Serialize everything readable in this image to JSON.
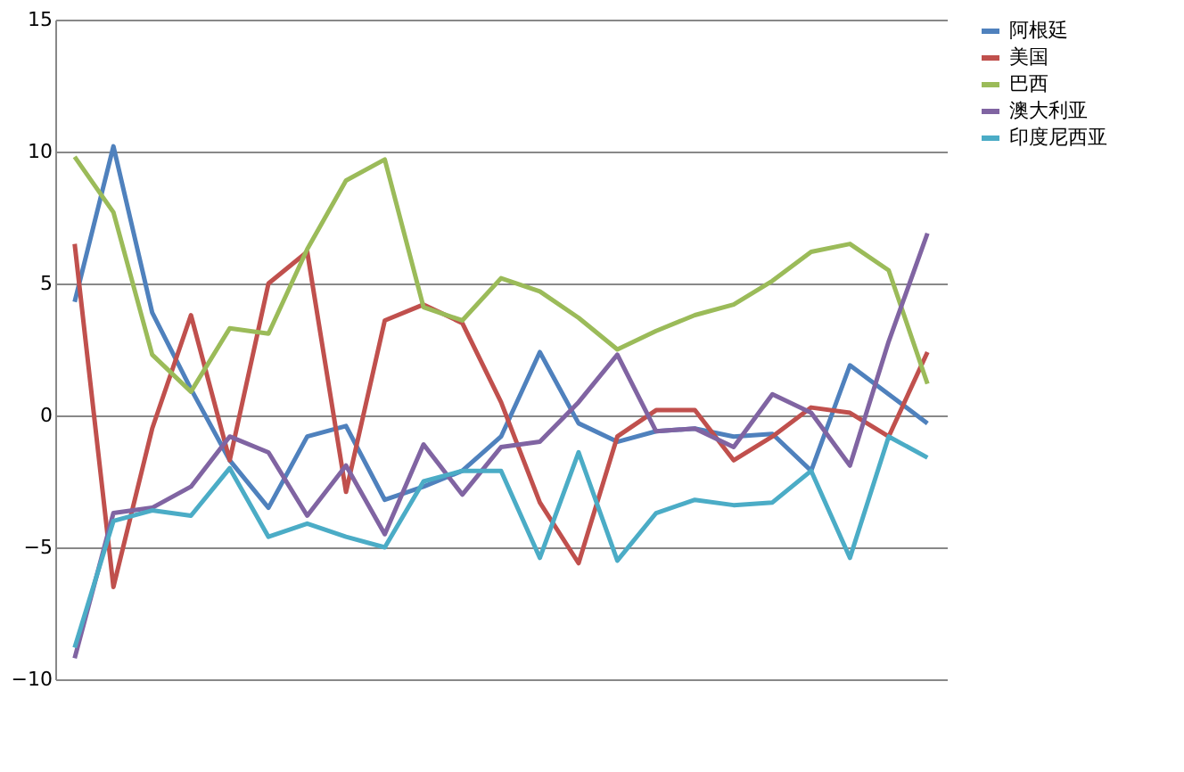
{
  "chart_data": {
    "type": "line",
    "categories": [
      null,
      null,
      null,
      null,
      null,
      null,
      null,
      null,
      null,
      null,
      null,
      null,
      null,
      null,
      null,
      null,
      null,
      null,
      null,
      null,
      null,
      null,
      null
    ],
    "series": [
      {
        "name": "阿根廷",
        "color": "#4f81bd",
        "values": [
          4.3,
          10.2,
          3.9,
          1.0,
          -1.7,
          -3.5,
          -0.8,
          -0.4,
          -3.2,
          -2.7,
          -2.1,
          -0.8,
          2.4,
          -0.3,
          -1.0,
          -0.6,
          -0.5,
          -0.8,
          -0.7,
          -2.1,
          1.9,
          0.8,
          -0.3
        ]
      },
      {
        "name": "美国",
        "color": "#c0504d",
        "values": [
          6.5,
          -6.5,
          -0.5,
          3.8,
          -1.7,
          5.0,
          6.2,
          -2.9,
          3.6,
          4.2,
          3.5,
          0.5,
          -3.3,
          -5.6,
          -0.8,
          0.2,
          0.2,
          -1.7,
          -0.8,
          0.3,
          0.1,
          -0.8,
          2.4
        ]
      },
      {
        "name": "巴西",
        "color": "#9bbb59",
        "values": [
          9.8,
          7.7,
          2.3,
          0.9,
          3.3,
          3.1,
          6.3,
          8.9,
          9.7,
          4.1,
          3.6,
          5.2,
          4.7,
          3.7,
          2.5,
          3.2,
          3.8,
          4.2,
          5.1,
          6.2,
          6.5,
          5.5,
          1.2
        ]
      },
      {
        "name": "澳大利亚",
        "color": "#8064a2",
        "values": [
          -9.2,
          -3.7,
          -3.5,
          -2.7,
          -0.8,
          -1.4,
          -3.8,
          -1.9,
          -4.5,
          -1.1,
          -3.0,
          -1.2,
          -1.0,
          0.5,
          2.3,
          -0.6,
          -0.5,
          -1.2,
          0.8,
          0.1,
          -1.9,
          2.8,
          6.9
        ]
      },
      {
        "name": "印度尼西亚",
        "color": "#4bacc6",
        "values": [
          -8.8,
          -4.0,
          -3.6,
          -3.8,
          -2.0,
          -4.6,
          -4.1,
          -4.6,
          -5.0,
          -2.5,
          -2.1,
          -2.1,
          -5.4,
          -1.4,
          -5.5,
          -3.7,
          -3.2,
          -3.4,
          -3.3,
          -2.1,
          -5.4,
          -0.8,
          -1.6
        ]
      }
    ],
    "ylim": [
      -10,
      15
    ],
    "yticks": [
      -10,
      -5,
      0,
      5,
      10,
      15
    ],
    "grid": "y",
    "legend": "right",
    "tick_labels": "y",
    "marker": "none",
    "line_style": "solid"
  }
}
